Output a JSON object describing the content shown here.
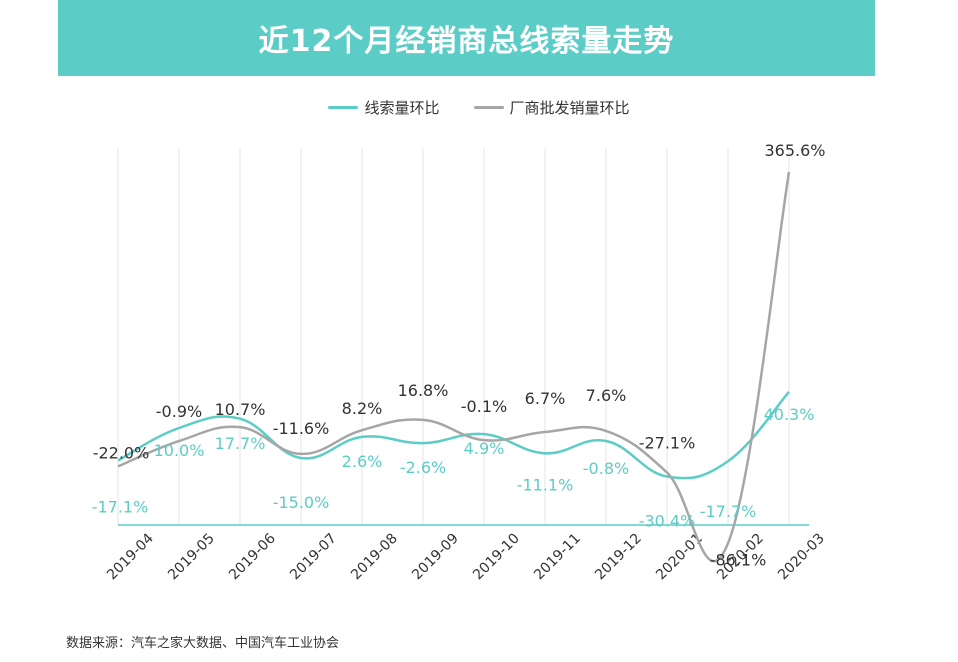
{
  "header": {
    "title": "近12个月经销商总线索量走势"
  },
  "legend": {
    "items": [
      {
        "label": "线索量环比",
        "color": "#5ccdc6"
      },
      {
        "label": "厂商批发销量环比",
        "color": "#a6a6a6"
      }
    ]
  },
  "source": "数据来源：汽车之家大数据、中国汽车工业协会",
  "chart_data": {
    "type": "line",
    "categories": [
      "2019-04",
      "2019-05",
      "2019-06",
      "2019-07",
      "2019-08",
      "2019-09",
      "2019-10",
      "2019-11",
      "2019-12",
      "2020-01",
      "2020-02",
      "2020-03"
    ],
    "series": [
      {
        "name": "线索量环比",
        "color": "#5ccdc6",
        "values": [
          -17.1,
          10.0,
          17.7,
          -15.0,
          2.6,
          -2.6,
          4.9,
          -11.1,
          -0.8,
          -30.4,
          -17.7,
          40.3
        ],
        "labels": [
          "-17.1%",
          "10.0%",
          "17.7%",
          "-15.0%",
          "2.6%",
          "-2.6%",
          "4.9%",
          "-11.1%",
          "-0.8%",
          "-30.4%",
          "-17.7%",
          "40.3%"
        ]
      },
      {
        "name": "厂商批发销量环比",
        "color": "#a6a6a6",
        "values": [
          -22.0,
          -0.9,
          10.7,
          -11.6,
          8.2,
          16.8,
          -0.1,
          6.7,
          7.6,
          -27.1,
          -86.1,
          365.6
        ],
        "labels": [
          "-22.0%",
          "-0.9%",
          "10.7%",
          "-11.6%",
          "8.2%",
          "16.8%",
          "-0.1%",
          "6.7%",
          "7.6%",
          "-27.1%",
          "-86.1%",
          "365.6%"
        ]
      }
    ],
    "grid": "vertical",
    "legend_position": "top"
  }
}
